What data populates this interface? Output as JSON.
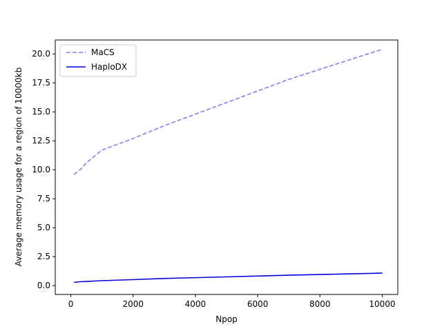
{
  "chart_data": {
    "type": "line",
    "title": "",
    "xlabel": "Npop",
    "ylabel": "Average memory usage for a region of 10000kb",
    "xlim": [
      -500,
      10500
    ],
    "ylim": [
      -0.76,
      21.2
    ],
    "xticks": [
      0,
      2000,
      4000,
      6000,
      8000,
      10000
    ],
    "xtick_labels": [
      "0",
      "2000",
      "4000",
      "6000",
      "8000",
      "10000"
    ],
    "yticks": [
      0.0,
      2.5,
      5.0,
      7.5,
      10.0,
      12.5,
      15.0,
      17.5,
      20.0
    ],
    "ytick_labels": [
      "0.0",
      "2.5",
      "5.0",
      "7.5",
      "10.0",
      "12.5",
      "15.0",
      "17.5",
      "20.0"
    ],
    "grid": false,
    "legend_position": "top-left",
    "series": [
      {
        "name": "MaCS",
        "color": "#7f7ff0",
        "style": "dashed",
        "x": [
          100,
          300,
          500,
          1000,
          2000,
          3000,
          5000,
          7000,
          10000
        ],
        "y": [
          9.6,
          10.0,
          10.6,
          11.7,
          12.7,
          13.8,
          15.8,
          17.8,
          20.4
        ]
      },
      {
        "name": "HaploDX",
        "color": "#0000dd",
        "style": "solid",
        "x": [
          100,
          300,
          500,
          1000,
          2000,
          3000,
          5000,
          7000,
          10000
        ],
        "y": [
          0.28,
          0.34,
          0.36,
          0.43,
          0.52,
          0.62,
          0.76,
          0.9,
          1.08
        ]
      }
    ]
  }
}
